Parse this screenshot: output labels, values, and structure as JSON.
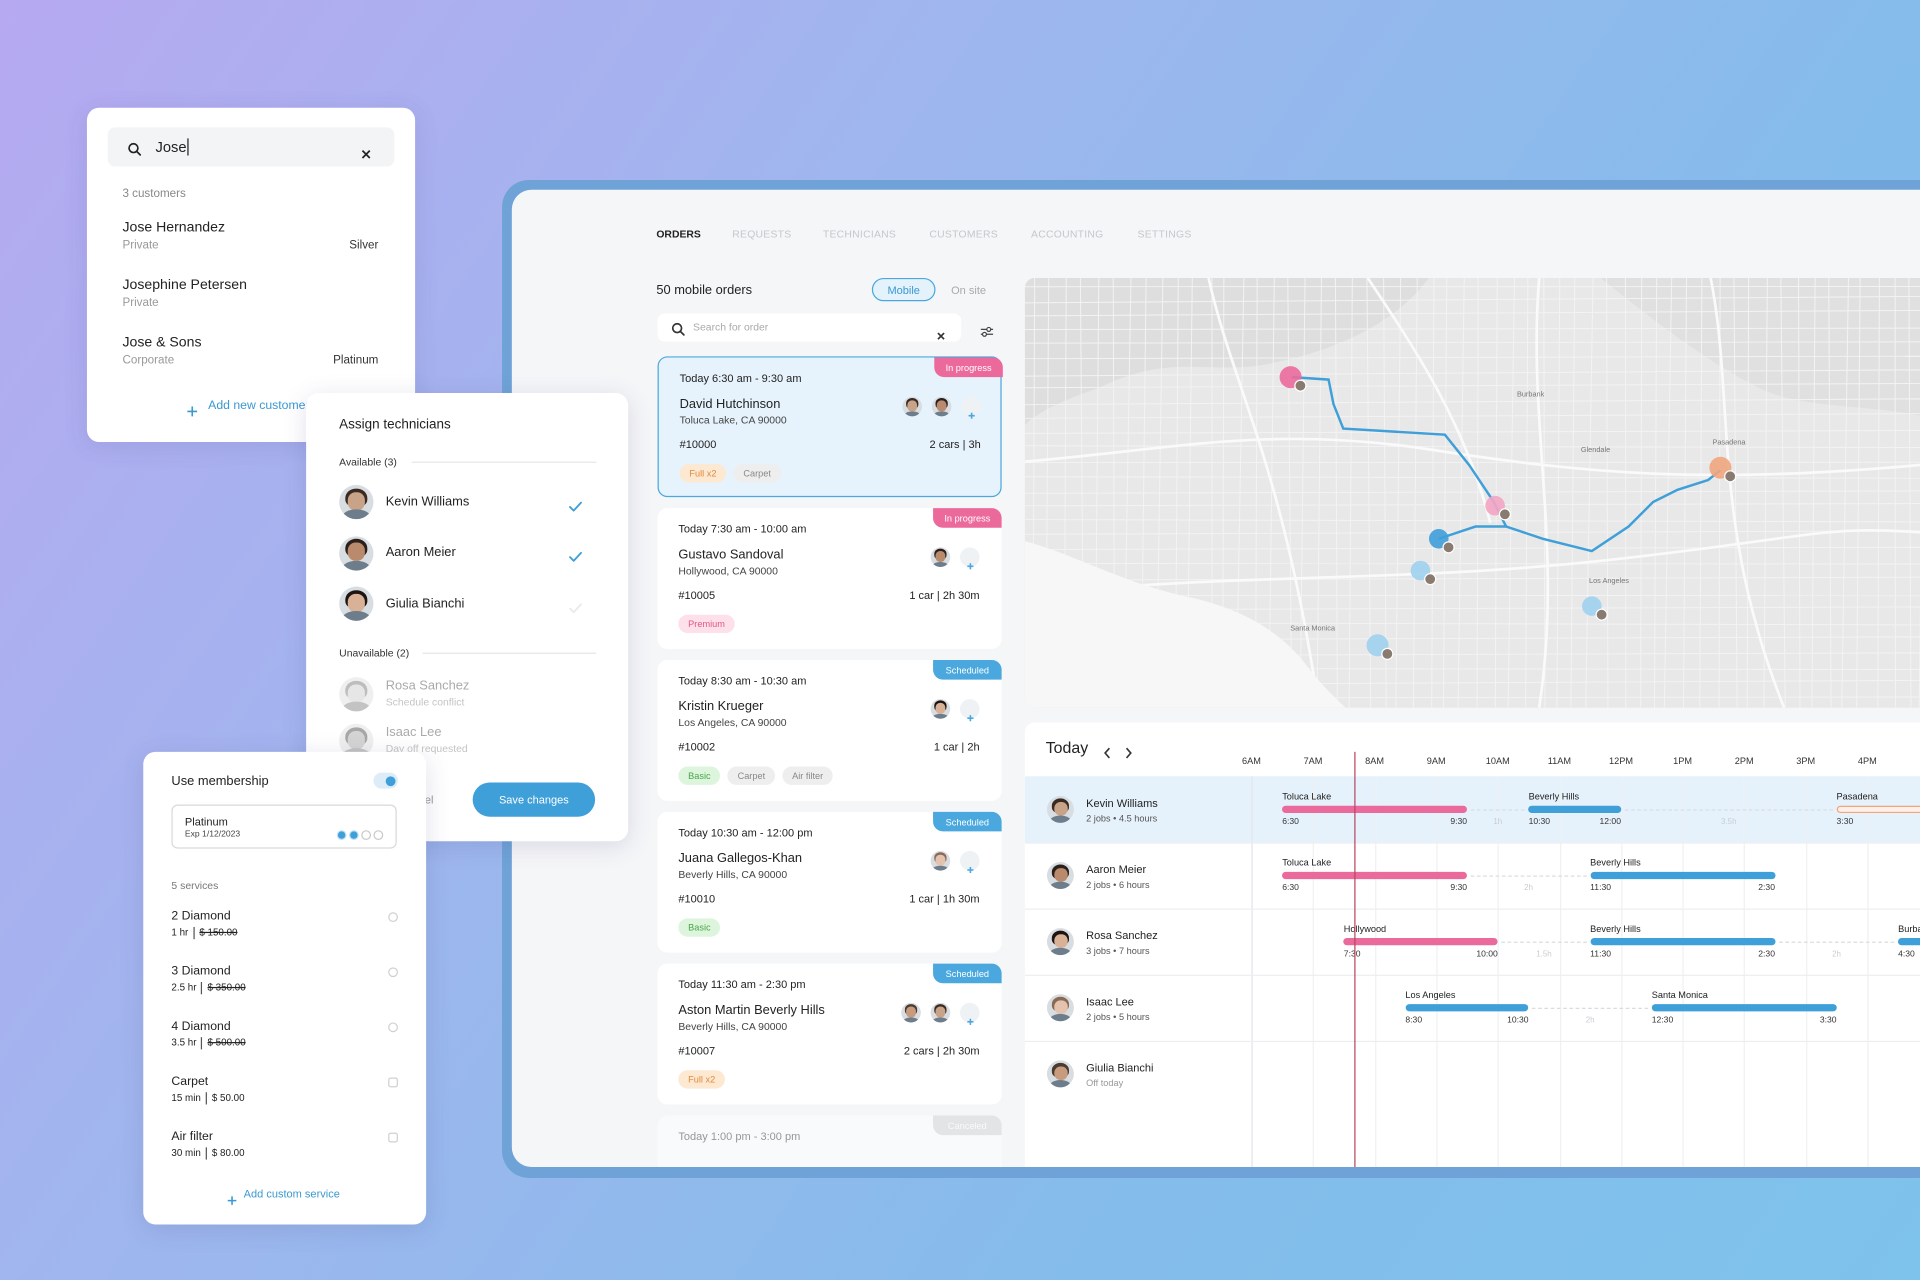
{
  "customer_search": {
    "query": "Jose",
    "count": "3 customers",
    "results": [
      {
        "name": "Jose Hernandez",
        "type": "Private",
        "tier": "Silver"
      },
      {
        "name": "Josephine Petersen",
        "type": "Private"
      },
      {
        "name": "Jose & Sons",
        "type": "Corporate",
        "tier": "Platinum"
      }
    ],
    "add_button": "Add new customer"
  },
  "assign": {
    "title": "Assign technicians",
    "available_label": "Available (3)",
    "available": [
      {
        "name": "Kevin Williams",
        "checked": true
      },
      {
        "name": "Aaron Meier",
        "checked": true
      },
      {
        "name": "Giulia Bianchi",
        "checked": false
      }
    ],
    "unavailable_label": "Unavailable (2)",
    "unavailable": [
      {
        "name": "Rosa Sanchez",
        "reason": "Schedule conflict"
      },
      {
        "name": "Isaac Lee",
        "reason": "Day off requested"
      }
    ],
    "cancel": "Cancel",
    "save": "Save changes"
  },
  "membership": {
    "title": "Use membership",
    "enabled": true,
    "plan": "Platinum",
    "expiry": "Exp 1/12/2023",
    "services_label": "5 services",
    "services": [
      {
        "name": "2 Diamond",
        "duration": "1 hr",
        "price": "$ 150.00",
        "struck": true
      },
      {
        "name": "3 Diamond",
        "duration": "2.5 hr",
        "price": "$ 350.00",
        "struck": true
      },
      {
        "name": "4 Diamond",
        "duration": "3.5 hr",
        "price": "$ 500.00",
        "struck": true
      },
      {
        "name": "Carpet",
        "duration": "15 min",
        "price": "$ 50.00",
        "struck": false
      },
      {
        "name": "Air filter",
        "duration": "30 min",
        "price": "$ 80.00",
        "struck": false
      }
    ],
    "add_button": "Add custom service"
  },
  "nav": [
    "ORDERS",
    "REQUESTS",
    "TECHNICIANS",
    "CUSTOMERS",
    "ACCOUNTING",
    "SETTINGS"
  ],
  "orders": {
    "title": "50 mobile orders",
    "toggle": [
      "Mobile",
      "On site"
    ],
    "search_placeholder": "Search for order",
    "items": [
      {
        "time": "Today 6:30 am - 9:30 am",
        "customer": "David Hutchinson",
        "address": "Toluca Lake, CA 90000",
        "id": "#10000",
        "summary": "2 cars | 3h",
        "status": "In progress",
        "status_color": "#ec6a9b",
        "selected": true,
        "tags": [
          {
            "label": "Full x2",
            "color": "#fde8d2",
            "text_color": "#e08a3c"
          },
          {
            "label": "Carpet",
            "color": "#eeeeee",
            "text_color": "#888888"
          }
        ]
      },
      {
        "time": "Today 7:30 am - 10:00 am",
        "customer": "Gustavo Sandoval",
        "address": "Hollywood, CA 90000",
        "id": "#10005",
        "summary": "1 car | 2h 30m",
        "status": "In progress",
        "status_color": "#ec6a9b",
        "tags": [
          {
            "label": "Premium",
            "color": "#fde0ea",
            "text_color": "#e0578a"
          }
        ]
      },
      {
        "time": "Today 8:30 am - 10:30 am",
        "customer": "Kristin Krueger",
        "address": "Los Angeles, CA 90000",
        "id": "#10002",
        "summary": "1 car | 2h",
        "status": "Scheduled",
        "status_color": "#4aa8de",
        "tags": [
          {
            "label": "Basic",
            "color": "#ddf5dc",
            "text_color": "#4aa54a"
          },
          {
            "label": "Carpet",
            "color": "#eeeeee",
            "text_color": "#888888"
          },
          {
            "label": "Air filter",
            "color": "#eeeeee",
            "text_color": "#888888"
          }
        ]
      },
      {
        "time": "Today 10:30 am - 12:00 pm",
        "customer": "Juana Gallegos-Khan",
        "address": "Beverly Hills, CA 90000",
        "id": "#10010",
        "summary": "1 car | 1h 30m",
        "status": "Scheduled",
        "status_color": "#4aa8de",
        "tags": [
          {
            "label": "Basic",
            "color": "#ddf5dc",
            "text_color": "#4aa54a"
          }
        ]
      },
      {
        "time": "Today 11:30 am - 2:30 pm",
        "customer": "Aston Martin Beverly Hills",
        "address": "Beverly Hills, CA 90000",
        "id": "#10007",
        "summary": "2 cars | 2h 30m",
        "status": "Scheduled",
        "status_color": "#4aa8de",
        "tags": [
          {
            "label": "Full x2",
            "color": "#fde8d2",
            "text_color": "#e08a3c"
          }
        ]
      },
      {
        "time": "Today 1:00 pm - 3:00 pm",
        "status": "Canceled",
        "status_color": "#cfcfcf"
      }
    ]
  },
  "map": {
    "labels": [
      "Burbank",
      "Glendale",
      "Pasadena",
      "Los Angeles",
      "Santa Monica"
    ]
  },
  "schedule": {
    "title": "Today",
    "hours": [
      "6AM",
      "7AM",
      "8AM",
      "9AM",
      "10AM",
      "11AM",
      "12PM",
      "1PM",
      "2PM",
      "3PM",
      "4PM"
    ],
    "technicians": [
      {
        "name": "Kevin Williams",
        "meta": "2 jobs • 4.5 hours",
        "selected": true,
        "jobs": [
          {
            "place": "Toluca Lake",
            "start": "6:30",
            "end": "9:30",
            "color": "#ea6a9c"
          },
          {
            "place": "Beverly Hills",
            "start": "10:30",
            "end": "12:00",
            "color": "#3f9fd8"
          },
          {
            "place": "Pasadena",
            "start": "3:30",
            "color": "#f0a57e",
            "outline": true
          }
        ],
        "gaps": [
          "1h",
          "3.5h"
        ]
      },
      {
        "name": "Aaron Meier",
        "meta": "2 jobs • 6 hours",
        "jobs": [
          {
            "place": "Toluca Lake",
            "start": "6:30",
            "end": "9:30",
            "color": "#ea6a9c"
          },
          {
            "place": "Beverly Hills",
            "start": "11:30",
            "end": "2:30",
            "color": "#3f9fd8"
          }
        ],
        "gaps": [
          "2h"
        ]
      },
      {
        "name": "Rosa Sanchez",
        "meta": "3 jobs • 7 hours",
        "jobs": [
          {
            "place": "Hollywood",
            "start": "7:30",
            "end": "10:00",
            "color": "#ea6a9c"
          },
          {
            "place": "Beverly Hills",
            "start": "11:30",
            "end": "2:30",
            "color": "#3f9fd8"
          },
          {
            "place": "Burbank",
            "start": "4:30",
            "color": "#3f9fd8"
          }
        ],
        "gaps": [
          "1.5h",
          "2h"
        ]
      },
      {
        "name": "Isaac Lee",
        "meta": "2 jobs • 5 hours",
        "jobs": [
          {
            "place": "Los Angeles",
            "start": "8:30",
            "end": "10:30",
            "color": "#3f9fd8"
          },
          {
            "place": "Santa Monica",
            "start": "12:30",
            "end": "3:30",
            "color": "#3f9fd8"
          }
        ],
        "gaps": [
          "2h"
        ]
      },
      {
        "name": "Giulia Bianchi",
        "meta": "Off today",
        "jobs": [],
        "gaps": []
      }
    ]
  }
}
